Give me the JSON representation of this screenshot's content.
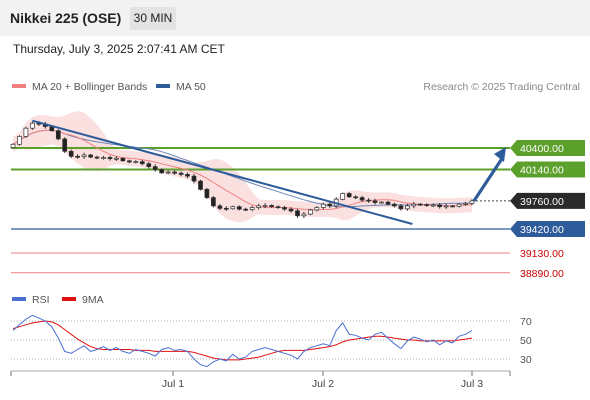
{
  "header": {
    "symbol": "Nikkei 225 (OSE)",
    "timeframe": "30 MIN"
  },
  "timestamp": "Thursday, July 3, 2025 2:07:41 AM CET",
  "chart_data": {
    "type": "candlestick",
    "legend": [
      {
        "name": "MA 20 + Bollinger Bands",
        "color": "#f08080"
      },
      {
        "name": "MA 50",
        "color": "#2e5b9a"
      }
    ],
    "credit": "Research © 2025 Trading Central",
    "x_ticks": [
      "Jul 1",
      "Jul 2",
      "Jul 3"
    ],
    "levels": [
      {
        "value": 40400,
        "label": "40400.00",
        "kind": "resistance"
      },
      {
        "value": 40140,
        "label": "40140.00",
        "kind": "resistance"
      },
      {
        "value": 39760,
        "label": "39760.00",
        "kind": "last"
      },
      {
        "value": 39420,
        "label": "39420.00",
        "kind": "pivot"
      },
      {
        "value": 39130,
        "label": "39130.00",
        "kind": "support"
      },
      {
        "value": 38890,
        "label": "38890.00",
        "kind": "support"
      }
    ],
    "trendline": {
      "from": 40730,
      "to": 39480,
      "start_bar": 3,
      "end_bar": 61
    },
    "projection": {
      "from": 39760,
      "to": 40400
    },
    "price_close": [
      40445,
      40540,
      40640,
      40700,
      40690,
      40660,
      40610,
      40510,
      40360,
      40300,
      40295,
      40315,
      40290,
      40280,
      40285,
      40270,
      40275,
      40245,
      40230,
      40235,
      40210,
      40175,
      40140,
      40100,
      40110,
      40095,
      40080,
      40060,
      40000,
      39900,
      39800,
      39700,
      39670,
      39665,
      39690,
      39660,
      39655,
      39680,
      39700,
      39705,
      39690,
      39680,
      39660,
      39640,
      39580,
      39600,
      39650,
      39680,
      39720,
      39700,
      39780,
      39850,
      39810,
      39800,
      39770,
      39760,
      39740,
      39745,
      39720,
      39700,
      39665,
      39700,
      39720,
      39715,
      39705,
      39710,
      39690,
      39700,
      39695,
      39720,
      39730,
      39760
    ],
    "rsi": {
      "levels": [
        70,
        50,
        30
      ],
      "series": [
        {
          "name": "RSI",
          "color": "#4a6fd1",
          "values": [
            60,
            66,
            72,
            76,
            73,
            70,
            64,
            52,
            38,
            36,
            40,
            44,
            38,
            40,
            43,
            39,
            42,
            38,
            36,
            40,
            38,
            36,
            33,
            40,
            42,
            39,
            40,
            38,
            30,
            24,
            22,
            27,
            30,
            28,
            35,
            30,
            32,
            38,
            40,
            42,
            40,
            38,
            36,
            34,
            30,
            38,
            42,
            44,
            46,
            44,
            60,
            68,
            56,
            55,
            52,
            50,
            56,
            58,
            52,
            46,
            41,
            49,
            53,
            51,
            48,
            50,
            45,
            49,
            47,
            54,
            56,
            60
          ]
        },
        {
          "name": "9MA",
          "color": "#e01010",
          "values": [
            62,
            64,
            66,
            68,
            69,
            70,
            69,
            66,
            61,
            56,
            51,
            47,
            43,
            41,
            40,
            40,
            40,
            40,
            40,
            39,
            39,
            39,
            38,
            38,
            38,
            38,
            38,
            38,
            37,
            35,
            33,
            31,
            30,
            29,
            29,
            29,
            30,
            31,
            32,
            34,
            36,
            38,
            39,
            39,
            39,
            39,
            40,
            41,
            42,
            43,
            45,
            48,
            50,
            51,
            52,
            53,
            54,
            54,
            53,
            52,
            51,
            50,
            50,
            49,
            49,
            49,
            49,
            49,
            49,
            50,
            51,
            52
          ]
        }
      ]
    }
  }
}
